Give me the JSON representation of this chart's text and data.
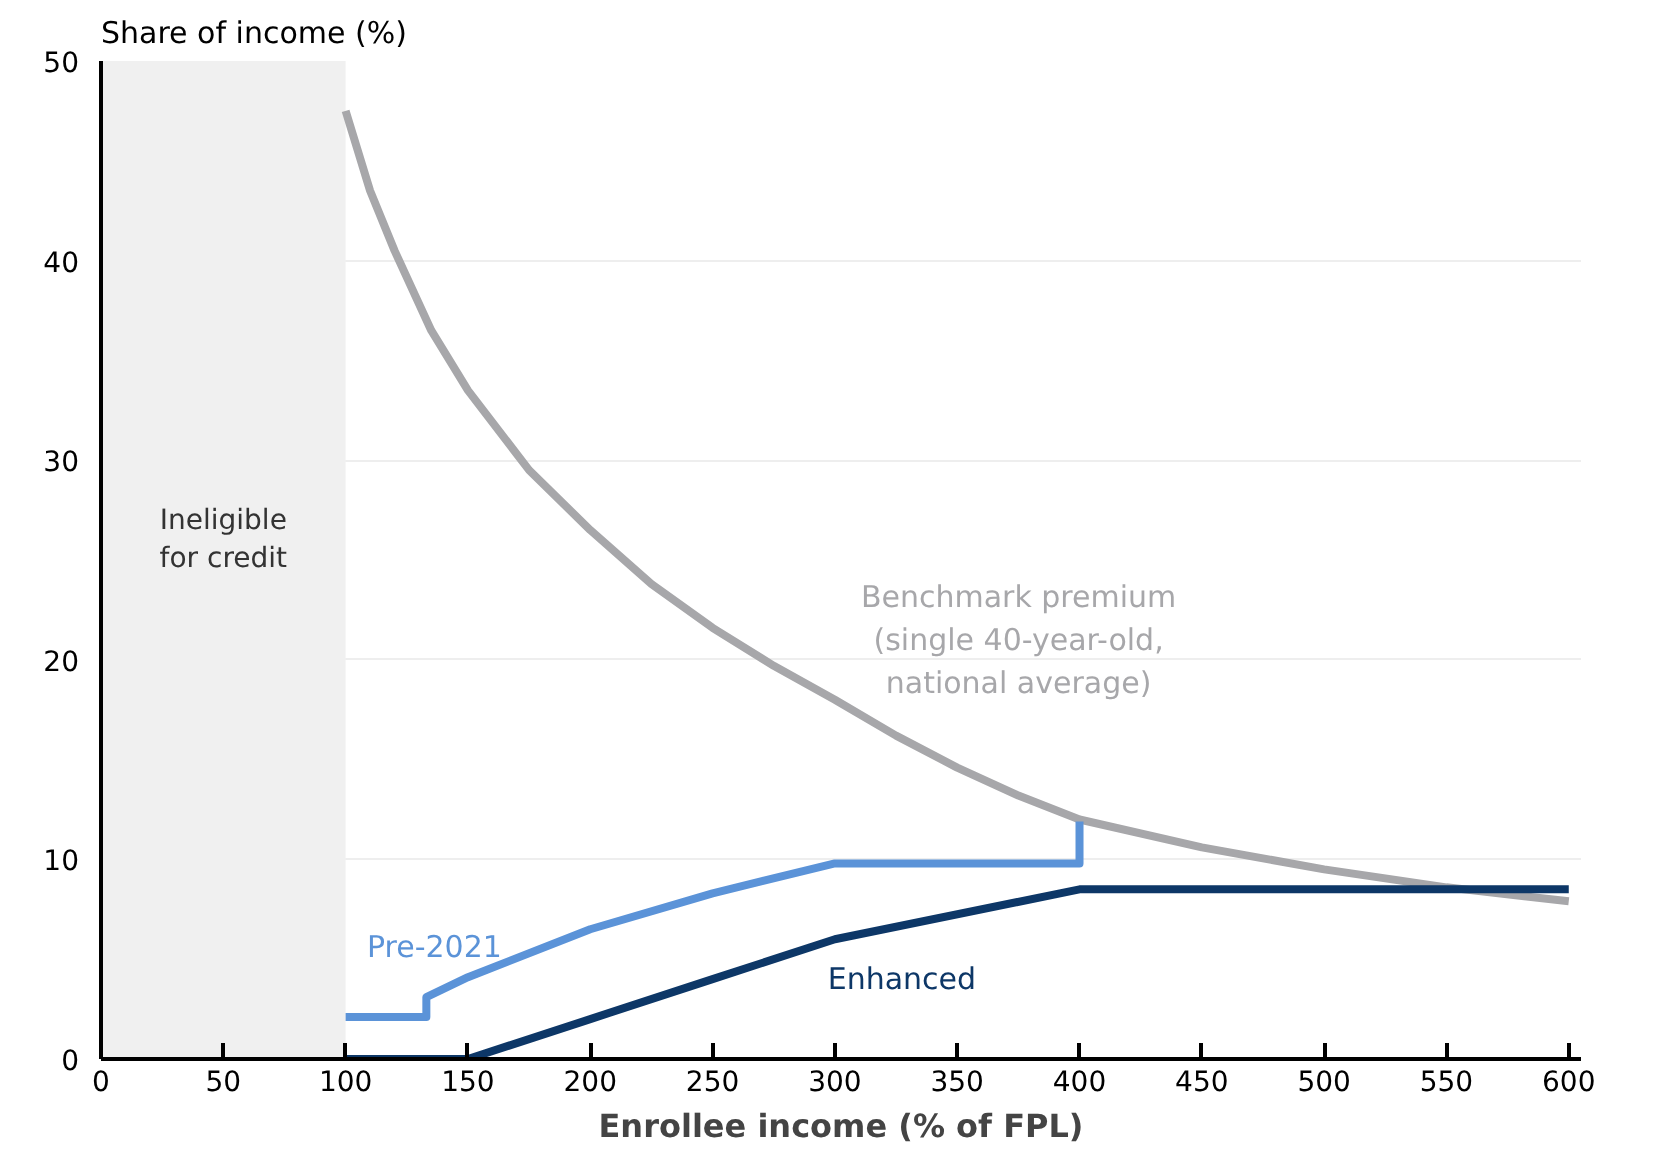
{
  "chart_data": {
    "type": "line",
    "xlabel": "Enrollee income (% of FPL)",
    "ylabel": "Share of income (%)",
    "xlim": [
      0,
      605
    ],
    "ylim": [
      0,
      50
    ],
    "xticks": [
      0,
      50,
      100,
      150,
      200,
      250,
      300,
      350,
      400,
      450,
      500,
      550,
      600
    ],
    "yticks": [
      0,
      10,
      20,
      30,
      40,
      50
    ],
    "grid": "y",
    "line_style": "solid",
    "marker": "none",
    "series": [
      {
        "name": "Benchmark premium\n(single 40-year-old,\nnational average)",
        "color": "#a7a7aa",
        "x": [
          100,
          110,
          120,
          135,
          150,
          175,
          200,
          225,
          250,
          275,
          300,
          325,
          350,
          375,
          400,
          450,
          500,
          550,
          600
        ],
        "values": [
          47.5,
          43.5,
          40.5,
          36.5,
          33.5,
          29.5,
          26.5,
          23.8,
          21.6,
          19.7,
          18.0,
          16.2,
          14.6,
          13.2,
          12.0,
          10.6,
          9.5,
          8.6,
          7.9
        ]
      },
      {
        "name": "Pre-2021",
        "color": "#5b93d8",
        "x": [
          100,
          133,
          133,
          150,
          200,
          250,
          300,
          400,
          400
        ],
        "values": [
          2.1,
          2.1,
          3.1,
          4.1,
          6.5,
          8.3,
          9.8,
          9.8,
          11.9
        ]
      },
      {
        "name": "Enhanced",
        "color": "#0d3767",
        "x": [
          100,
          150,
          200,
          250,
          300,
          400,
          600
        ],
        "values": [
          0,
          0,
          2,
          4,
          6,
          8.5,
          8.5
        ]
      }
    ],
    "bands": [
      {
        "axis": "x",
        "from": 0,
        "to": 100,
        "label": "Ineligible\nfor credit",
        "color": "#f0f0f0"
      }
    ]
  }
}
